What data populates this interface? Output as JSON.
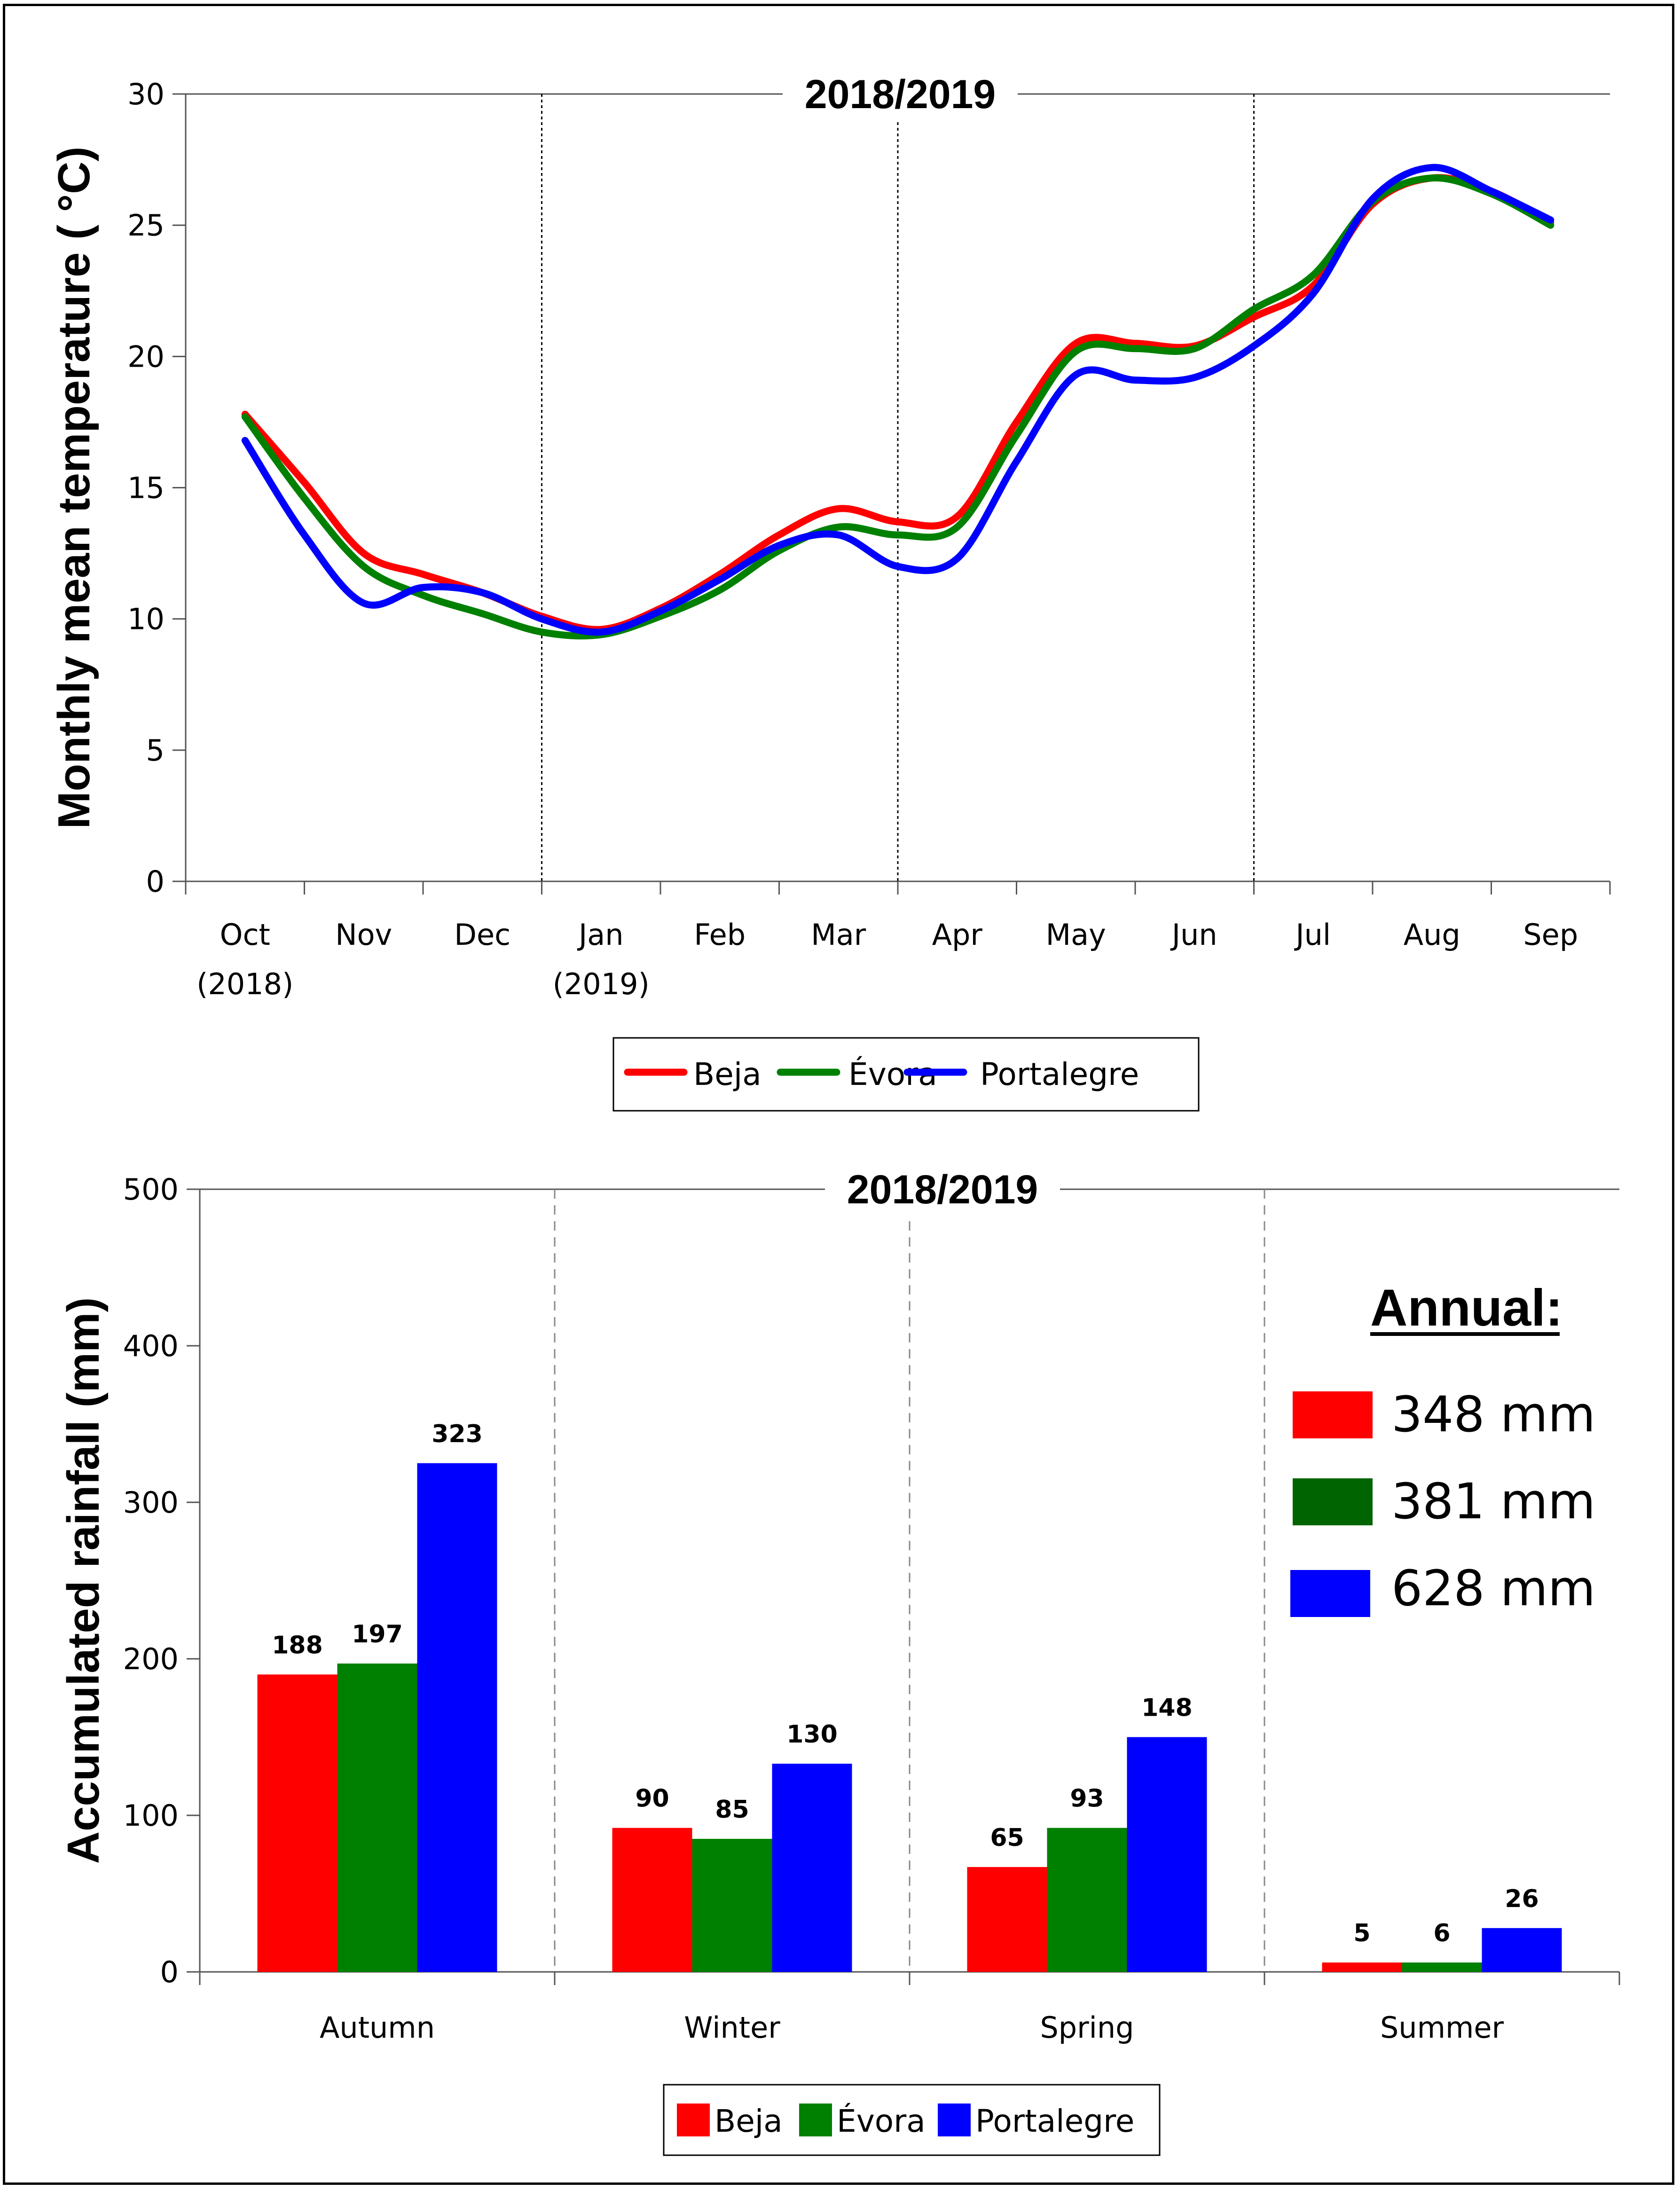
{
  "colors": {
    "beja": "#ff0000",
    "evora": "#008000",
    "portalegre": "#0000ff"
  },
  "chart_data": [
    {
      "type": "line",
      "title": "2018/2019",
      "ylabel": "Monthly mean temperature ( °C)",
      "ylim": [
        0,
        30
      ],
      "yticks": [
        0,
        5,
        10,
        15,
        20,
        25,
        30
      ],
      "categories": [
        {
          "month": "Oct",
          "year": "(2018)"
        },
        {
          "month": "Nov",
          "year": ""
        },
        {
          "month": "Dec",
          "year": ""
        },
        {
          "month": "Jan",
          "year": "(2019)"
        },
        {
          "month": "Feb",
          "year": ""
        },
        {
          "month": "Mar",
          "year": ""
        },
        {
          "month": "Apr",
          "year": ""
        },
        {
          "month": "May",
          "year": ""
        },
        {
          "month": "Jun",
          "year": ""
        },
        {
          "month": "Jul",
          "year": ""
        },
        {
          "month": "Aug",
          "year": ""
        },
        {
          "month": "Sep",
          "year": ""
        }
      ],
      "season_dividers_after_index": [
        2,
        5,
        8
      ],
      "x_note": "x values are month positions (0 = Oct 2018 ... 11 = Sep 2019)",
      "series": [
        {
          "name": "Beja",
          "key": "beja",
          "x": [
            0,
            0.5,
            1,
            1.5,
            2,
            2.5,
            3,
            3.5,
            4,
            4.5,
            5,
            5.5,
            6,
            6.5,
            7,
            7.5,
            8,
            8.5,
            9,
            9.5,
            10,
            10.5,
            11
          ],
          "y": [
            17.8,
            15.2,
            12.5,
            11.7,
            11.0,
            10.1,
            9.6,
            10.4,
            11.7,
            13.2,
            14.2,
            13.7,
            13.9,
            17.5,
            20.5,
            20.5,
            20.4,
            21.5,
            22.7,
            25.8,
            26.8,
            26.3,
            25.1
          ]
        },
        {
          "name": "Évora",
          "key": "evora",
          "x": [
            0,
            0.5,
            1,
            1.5,
            2,
            2.5,
            3,
            3.5,
            4,
            4.5,
            5,
            5.5,
            6,
            6.5,
            7,
            7.5,
            8,
            8.5,
            9,
            9.5,
            10,
            10.5,
            11
          ],
          "y": [
            17.7,
            14.6,
            12.0,
            10.9,
            10.2,
            9.5,
            9.4,
            10.1,
            11.1,
            12.6,
            13.5,
            13.2,
            13.5,
            17.0,
            20.2,
            20.3,
            20.3,
            21.8,
            23.1,
            25.9,
            26.8,
            26.2,
            25.0
          ]
        },
        {
          "name": "Portalegre",
          "key": "portalegre",
          "x": [
            0,
            0.5,
            1,
            1.5,
            2,
            2.5,
            3,
            3.5,
            4,
            4.5,
            5,
            5.5,
            6,
            6.5,
            7,
            7.5,
            8,
            8.5,
            9,
            9.5,
            10,
            10.5,
            11
          ],
          "y": [
            16.8,
            13.2,
            10.6,
            11.2,
            11.0,
            10.0,
            9.5,
            10.3,
            11.5,
            12.8,
            13.2,
            12.0,
            12.3,
            16.0,
            19.3,
            19.1,
            19.2,
            20.4,
            22.4,
            26.0,
            27.2,
            26.3,
            25.2
          ]
        }
      ],
      "legend": [
        "Beja",
        "Évora",
        "Portalegre"
      ]
    },
    {
      "type": "bar",
      "title": "2018/2019",
      "ylabel": "Accumulated rainfall (mm)",
      "ylim": [
        0,
        500
      ],
      "yticks": [
        0,
        100,
        200,
        300,
        400,
        500
      ],
      "categories": [
        "Autumn",
        "Winter",
        "Spring",
        "Summer"
      ],
      "series": [
        {
          "name": "Beja",
          "key": "beja",
          "values": [
            188,
            90,
            65,
            5
          ],
          "heights": [
            190,
            92,
            67,
            6
          ]
        },
        {
          "name": "Évora",
          "key": "evora",
          "values": [
            197,
            85,
            93,
            6
          ],
          "heights": [
            197,
            85,
            92,
            6
          ]
        },
        {
          "name": "Portalegre",
          "key": "portalegre",
          "values": [
            323,
            130,
            148,
            26
          ],
          "heights": [
            325,
            133,
            150,
            28
          ]
        }
      ],
      "legend": [
        "Beja",
        "Évora",
        "Portalegre"
      ],
      "annual": {
        "title": "Annual:",
        "items": [
          {
            "key": "beja",
            "label": "348 mm"
          },
          {
            "key": "evora_dark",
            "label": "381 mm"
          },
          {
            "key": "portalegre",
            "label": "628 mm"
          }
        ],
        "evora_dark_color": "#006400"
      }
    }
  ]
}
